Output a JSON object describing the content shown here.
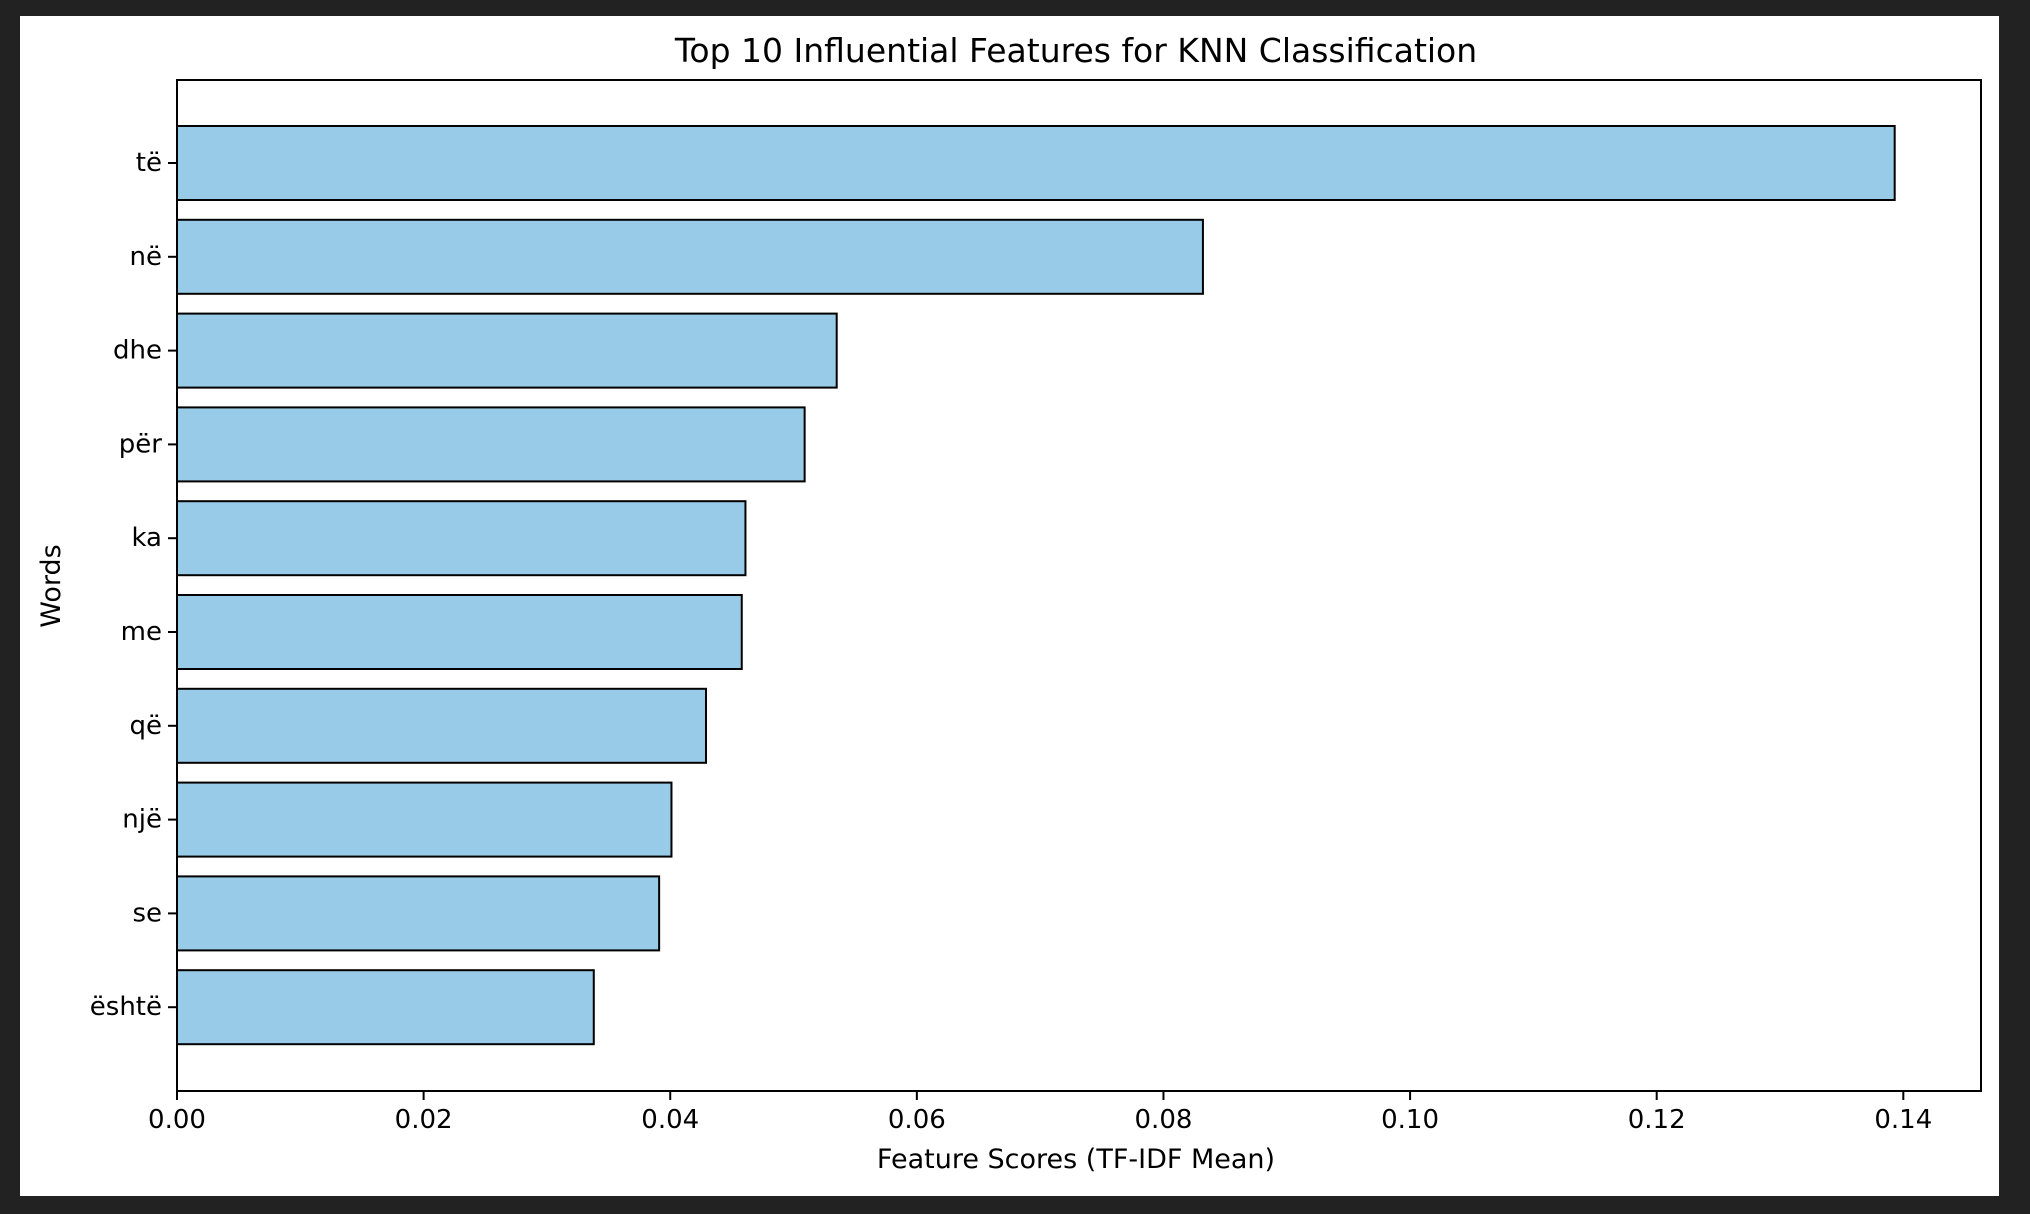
{
  "chart_data": {
    "type": "bar",
    "orientation": "horizontal",
    "title": "Top 10 Influential Features for KNN Classification",
    "xlabel": "Feature Scores (TF-IDF Mean)",
    "ylabel": "Words",
    "categories": [
      "të",
      "në",
      "dhe",
      "për",
      "ka",
      "me",
      "që",
      "një",
      "se",
      "është"
    ],
    "values": [
      0.1393,
      0.0832,
      0.0535,
      0.0509,
      0.0461,
      0.0458,
      0.0429,
      0.0401,
      0.0391,
      0.0338
    ],
    "xlim": [
      0.0,
      0.1463
    ],
    "xticks": [
      0.0,
      0.02,
      0.04,
      0.06,
      0.08,
      0.1,
      0.12,
      0.14
    ],
    "xtick_labels": [
      "0.00",
      "0.02",
      "0.04",
      "0.06",
      "0.08",
      "0.10",
      "0.12",
      "0.14"
    ],
    "grid": false,
    "bar_color": "#97cbe7",
    "bar_edge_color": "#000000"
  }
}
